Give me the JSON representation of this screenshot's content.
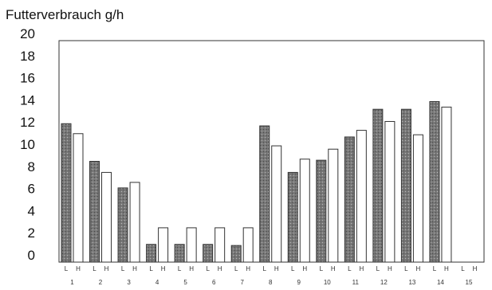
{
  "chart_data": {
    "type": "bar",
    "title": "Futterverbrauch g/h",
    "xlabel": "",
    "ylabel": "",
    "ylim": [
      0,
      20
    ],
    "yticks": [
      0,
      2,
      4,
      6,
      8,
      10,
      12,
      14,
      16,
      18,
      20
    ],
    "grid": false,
    "categories": [
      "1",
      "2",
      "3",
      "4",
      "5",
      "6",
      "7",
      "8",
      "9",
      "10",
      "11",
      "12",
      "13",
      "14",
      "15"
    ],
    "bar_labels": [
      "L",
      "H"
    ],
    "series": [
      {
        "name": "L",
        "values": [
          12.5,
          9.1,
          6.7,
          1.6,
          1.6,
          1.6,
          1.5,
          12.3,
          8.1,
          9.2,
          11.3,
          13.8,
          13.8,
          14.5,
          null
        ],
        "fill": "#777777"
      },
      {
        "name": "H",
        "values": [
          11.6,
          8.1,
          7.2,
          3.1,
          3.1,
          3.1,
          3.1,
          10.5,
          9.3,
          10.2,
          11.9,
          12.7,
          11.5,
          14.0,
          null
        ],
        "fill": "#ffffff"
      }
    ],
    "colors": {
      "axis": "#333333",
      "bar_outline": "#333333"
    }
  }
}
